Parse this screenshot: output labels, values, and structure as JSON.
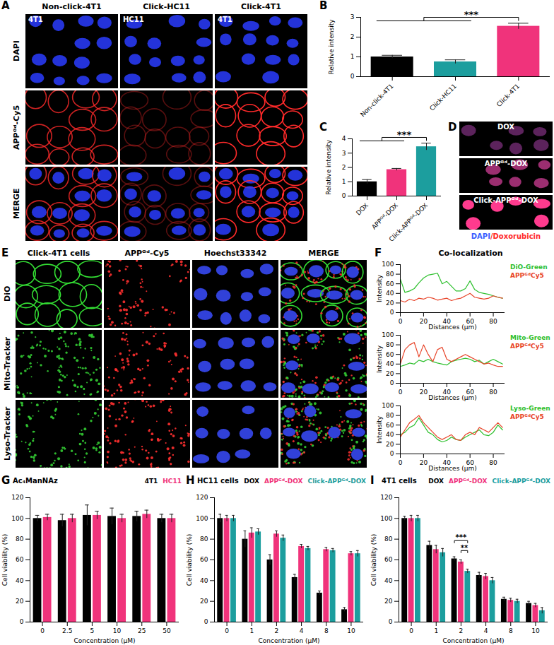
{
  "image_panels": [
    {
      "panel": "A",
      "columns": [
        "Non-click-4T1",
        "Click-HC11",
        "Click-4T1"
      ],
      "rows": [
        "DAPI",
        "APPᴳᵈ-Cy5",
        "MERGE"
      ],
      "cell_labels": [
        "4T1",
        "HC11",
        "4T1"
      ]
    },
    {
      "panel": "D",
      "rows": [
        "DOX",
        "APPᴳᵈ-DOX",
        "Click-APPᴳᵈ-DOX"
      ],
      "caption": [
        {
          "text": "DAPI",
          "color": "#3a5cff"
        },
        {
          "text": "/Doxorubicin",
          "color": "#ff2a2a"
        }
      ]
    },
    {
      "panel": "E",
      "columns": [
        "Click-4T1 cells",
        "APPᴳᵈ-Cy5",
        "Hoechst33342",
        "MERGE"
      ],
      "rows": [
        "DiO",
        "Mito-Tracker",
        "Lyso-Tracker"
      ]
    }
  ],
  "chart_data": [
    {
      "panel": "B",
      "type": "bar",
      "categories": [
        "Non-click-4T1",
        "Click-HC11",
        "Click-4T1"
      ],
      "values": [
        1.0,
        0.75,
        2.55
      ],
      "errors": [
        0.08,
        0.1,
        0.15
      ],
      "colors": [
        "#000000",
        "#1c9e9e",
        "#f0337b"
      ],
      "ylabel": "Relative intensity",
      "ylim": [
        0,
        3
      ],
      "yticks": [
        0,
        1,
        2,
        3
      ],
      "annotations": [
        {
          "label": "***",
          "from": [
            "Non-click-4T1",
            "Click-HC11"
          ],
          "to": "Click-4T1"
        }
      ]
    },
    {
      "panel": "C",
      "type": "bar",
      "categories": [
        "DOX",
        "APPᴳᵈ-DOX",
        "Click-APPᴳᵈ-DOX"
      ],
      "values": [
        1.0,
        1.85,
        3.45
      ],
      "errors": [
        0.15,
        0.08,
        0.25
      ],
      "colors": [
        "#000000",
        "#f0337b",
        "#1c9e9e"
      ],
      "ylabel": "Relative intensity",
      "ylim": [
        0,
        4
      ],
      "yticks": [
        0,
        1,
        2,
        3,
        4
      ],
      "annotations": [
        {
          "label": "***",
          "from": [
            "DOX",
            "APPᴳᵈ-DOX"
          ],
          "to": "Click-APPᴳᵈ-DOX"
        }
      ]
    },
    {
      "panel": "F",
      "title": "Co-localization",
      "type": "line",
      "x": [
        0,
        4,
        8,
        12,
        16,
        20,
        24,
        28,
        32,
        36,
        40,
        44,
        48,
        52,
        56,
        60,
        64,
        68,
        72,
        76,
        80,
        84,
        88
      ],
      "series": [
        {
          "name": "DiO-Green",
          "color": "#2ec02e",
          "values": [
            70,
            42,
            45,
            50,
            62,
            72,
            78,
            80,
            82,
            60,
            65,
            55,
            45,
            45,
            50,
            66,
            48,
            42,
            40,
            38,
            35,
            32,
            30
          ]
        },
        {
          "name": "APPᴳᵈCy5",
          "color": "#e8452a",
          "values": [
            25,
            22,
            28,
            25,
            30,
            28,
            32,
            30,
            26,
            28,
            30,
            25,
            28,
            30,
            35,
            40,
            32,
            30,
            28,
            30,
            35,
            32,
            30
          ]
        }
      ],
      "xlabel": "Distances (μm)",
      "ylabel": "Intensity",
      "xlim": [
        0,
        90
      ],
      "xticks": [
        0,
        20,
        40,
        60,
        80
      ],
      "ylim": [
        0,
        100
      ],
      "yticks": [
        0,
        20,
        40,
        60,
        80,
        100
      ]
    },
    {
      "type": "line",
      "x": [
        0,
        4,
        8,
        12,
        16,
        20,
        24,
        28,
        32,
        36,
        40,
        44,
        48,
        52,
        56,
        60,
        64,
        68,
        72,
        76,
        80,
        84,
        88
      ],
      "series": [
        {
          "name": "Mito-Green",
          "color": "#2ec02e",
          "values": [
            35,
            38,
            42,
            40,
            48,
            45,
            50,
            45,
            42,
            40,
            38,
            45,
            48,
            50,
            52,
            50,
            45,
            48,
            40,
            45,
            50,
            45,
            40
          ]
        },
        {
          "name": "APPᴳᵈCy5",
          "color": "#e8452a",
          "values": [
            40,
            70,
            80,
            85,
            55,
            80,
            60,
            45,
            70,
            75,
            50,
            45,
            50,
            55,
            60,
            55,
            50,
            45,
            40,
            42,
            38,
            35,
            35
          ]
        }
      ],
      "xlabel": "Distances (μm)",
      "ylabel": "Intensity",
      "xlim": [
        0,
        90
      ],
      "xticks": [
        0,
        20,
        40,
        60,
        80
      ],
      "ylim": [
        0,
        100
      ],
      "yticks": [
        0,
        20,
        40,
        60,
        80,
        100
      ]
    },
    {
      "type": "line",
      "x": [
        0,
        4,
        8,
        12,
        16,
        20,
        24,
        28,
        32,
        36,
        40,
        44,
        48,
        52,
        56,
        60,
        64,
        68,
        72,
        76,
        80,
        84,
        88
      ],
      "series": [
        {
          "name": "Lyso-Green",
          "color": "#2ec02e",
          "values": [
            40,
            45,
            55,
            60,
            75,
            60,
            45,
            40,
            30,
            25,
            28,
            35,
            30,
            28,
            35,
            40,
            45,
            50,
            40,
            38,
            45,
            60,
            50
          ]
        },
        {
          "name": "APPᴳᵈCy5",
          "color": "#e8452a",
          "values": [
            35,
            50,
            65,
            72,
            80,
            65,
            55,
            45,
            35,
            30,
            35,
            40,
            30,
            28,
            40,
            45,
            40,
            55,
            50,
            45,
            55,
            65,
            55
          ]
        }
      ],
      "xlabel": "Distances (μm)",
      "ylabel": "Intensity",
      "xlim": [
        0,
        90
      ],
      "xticks": [
        0,
        20,
        40,
        60,
        80
      ],
      "ylim": [
        0,
        100
      ],
      "yticks": [
        0,
        20,
        40,
        60,
        80,
        100
      ]
    },
    {
      "panel": "G",
      "title": "Ac₄ManNAz",
      "type": "bar",
      "categories": [
        "0",
        "2.5",
        "5",
        "10",
        "25",
        "50"
      ],
      "series": [
        {
          "name": "4T1",
          "color": "#000000",
          "values": [
            100,
            98,
            103,
            102,
            102,
            100
          ],
          "errors": [
            3,
            6,
            10,
            8,
            5,
            4
          ]
        },
        {
          "name": "HC11",
          "color": "#f0337b",
          "values": [
            101,
            100,
            103,
            100,
            104,
            100
          ],
          "errors": [
            3,
            4,
            4,
            4,
            4,
            4
          ]
        }
      ],
      "xlabel": "Concentration (μM)",
      "ylabel": "Cell viability (%)",
      "ylim": [
        0,
        120
      ],
      "yticks": [
        0,
        20,
        40,
        60,
        80,
        100,
        120
      ]
    },
    {
      "panel": "H",
      "title": "HC11 cells",
      "type": "bar",
      "categories": [
        "0",
        "1",
        "2",
        "4",
        "8",
        "10"
      ],
      "series": [
        {
          "name": "DOX",
          "color": "#000000",
          "values": [
            100,
            80,
            60,
            43,
            28,
            12
          ],
          "errors": [
            4,
            8,
            5,
            3,
            2,
            2
          ]
        },
        {
          "name": "APPᴳᵈ-DOX",
          "color": "#f0337b",
          "values": [
            100,
            86,
            85,
            73,
            70,
            66
          ],
          "errors": [
            3,
            5,
            3,
            2,
            2,
            2
          ]
        },
        {
          "name": "Click-APPᴳᵈ-DOX",
          "color": "#1c9e9e",
          "values": [
            100,
            87,
            81,
            71,
            69,
            66
          ],
          "errors": [
            3,
            3,
            3,
            2,
            2,
            3
          ]
        }
      ],
      "xlabel": "Concentration (μM)",
      "ylabel": "Cell viability (%)",
      "ylim": [
        0,
        120
      ],
      "yticks": [
        0,
        20,
        40,
        60,
        80,
        100,
        120
      ]
    },
    {
      "panel": "I",
      "title": "4T1 cells",
      "type": "bar",
      "categories": [
        "0",
        "1",
        "2",
        "4",
        "8",
        "10"
      ],
      "series": [
        {
          "name": "DOX",
          "color": "#000000",
          "values": [
            100,
            74,
            61,
            45,
            22,
            18
          ],
          "errors": [
            2,
            4,
            2,
            3,
            2,
            2
          ]
        },
        {
          "name": "APPᴳᵈ-DOX",
          "color": "#f0337b",
          "values": [
            100,
            70,
            58,
            44,
            21,
            16
          ],
          "errors": [
            3,
            4,
            2,
            3,
            2,
            2
          ]
        },
        {
          "name": "Click-APPᴳᵈ-DOX",
          "color": "#1c9e9e",
          "values": [
            100,
            67,
            49,
            40,
            20,
            11
          ],
          "errors": [
            3,
            4,
            2,
            3,
            2,
            3
          ]
        }
      ],
      "xlabel": "Concentration (μM)",
      "ylabel": "Cell viability (%)",
      "ylim": [
        0,
        120
      ],
      "yticks": [
        0,
        20,
        40,
        60,
        80,
        100,
        120
      ],
      "annotations": [
        {
          "label": "***",
          "category": "2",
          "series": [
            "DOX",
            "Click-APPᴳᵈ-DOX"
          ]
        },
        {
          "label": "**",
          "category": "2",
          "series": [
            "APPᴳᵈ-DOX",
            "Click-APPᴳᵈ-DOX"
          ]
        }
      ]
    }
  ]
}
